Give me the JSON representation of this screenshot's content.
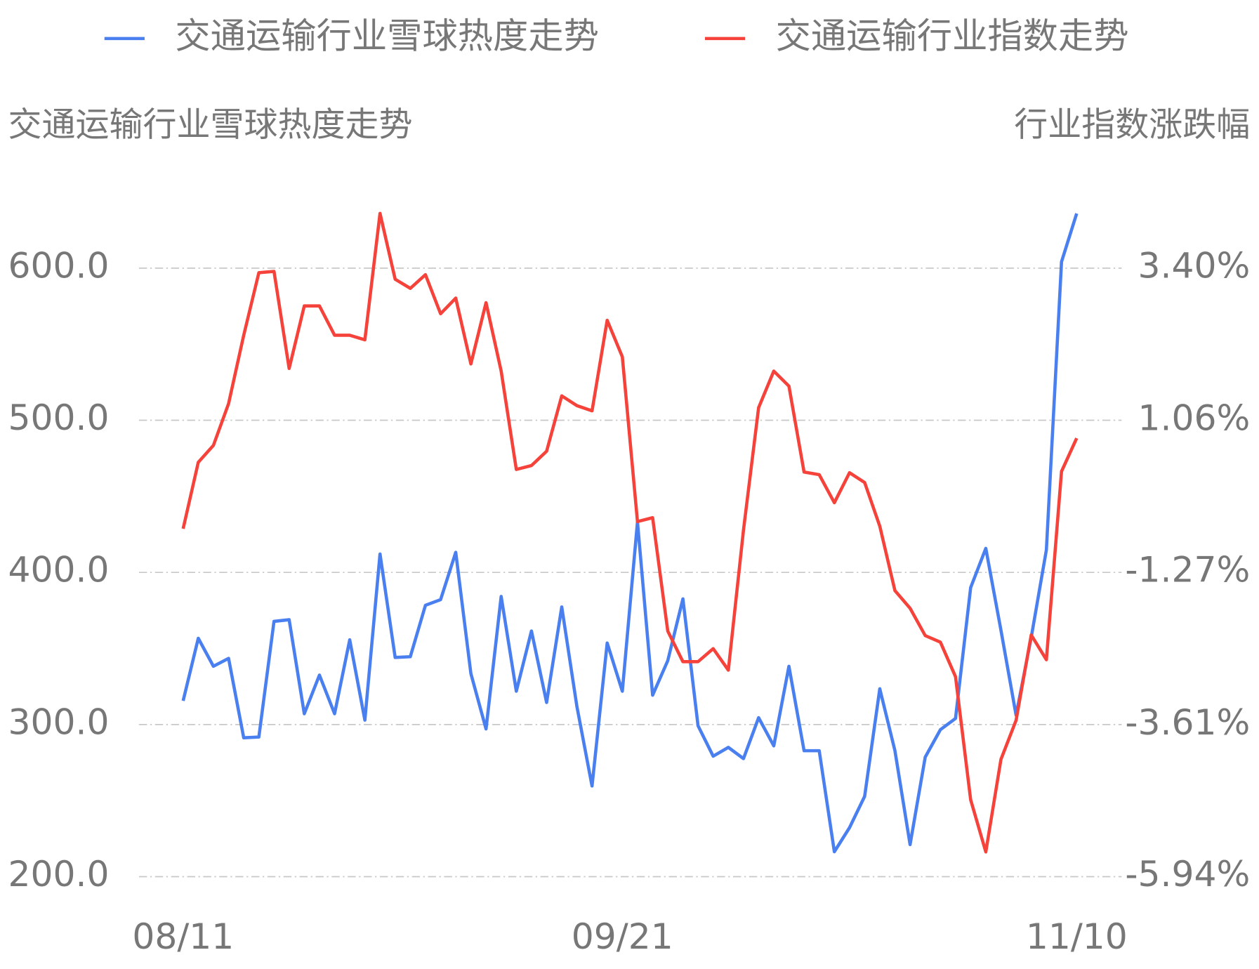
{
  "chart_data": {
    "type": "line",
    "y_label": "交通运输行业雪球热度走势",
    "y2_label": "行业指数涨跌幅",
    "categories": [
      "08/11",
      null,
      null,
      null,
      null,
      null,
      null,
      null,
      null,
      null,
      null,
      null,
      null,
      null,
      null,
      null,
      null,
      null,
      null,
      null,
      null,
      null,
      null,
      null,
      null,
      null,
      null,
      null,
      null,
      "09/21",
      null,
      null,
      null,
      null,
      null,
      null,
      null,
      null,
      null,
      null,
      null,
      null,
      null,
      null,
      null,
      null,
      null,
      null,
      null,
      null,
      null,
      null,
      null,
      null,
      null,
      null,
      null,
      null,
      null,
      "11/10"
    ],
    "series": [
      {
        "name": "交通运输行业雪球热度走势",
        "color": "#4a7ff0",
        "values": [
          315.6,
          356.7,
          338.3,
          343.5,
          291.3,
          291.8,
          367.8,
          368.9,
          307.1,
          332.5,
          307.1,
          355.7,
          302.9,
          412.1,
          344.1,
          344.6,
          378.4,
          382.1,
          413.2,
          333.5,
          297.1,
          384.2,
          321.9,
          361.5,
          314.5,
          377.3,
          311.9,
          259.6,
          353.6,
          321.9,
          433.2,
          319.3,
          342.0,
          382.6,
          299.2,
          279.2,
          285.0,
          277.6,
          304.5,
          286.0,
          338.3,
          282.8,
          282.8,
          216.4,
          232.2,
          252.8,
          323.5,
          282.8,
          221.1,
          278.6,
          296.6,
          304.0,
          390.0,
          415.8,
          362.0,
          306.1,
          357.3,
          414.8,
          604.2,
          635.9
        ]
      },
      {
        "name": "交通运输行业指数走势",
        "color": "#f5423a",
        "axis": "y2",
        "values": [
          -0.6,
          0.42,
          0.68,
          1.32,
          2.37,
          3.33,
          3.35,
          1.86,
          2.82,
          2.82,
          2.37,
          2.37,
          2.3,
          4.24,
          3.23,
          3.09,
          3.3,
          2.7,
          2.94,
          1.93,
          2.87,
          1.82,
          0.31,
          0.37,
          0.59,
          1.44,
          1.29,
          1.21,
          2.6,
          2.04,
          -0.49,
          -0.43,
          -2.17,
          -2.64,
          -2.64,
          -2.44,
          -2.77,
          -0.62,
          1.26,
          1.82,
          1.59,
          0.27,
          0.23,
          -0.2,
          0.26,
          0.11,
          -0.56,
          -1.55,
          -1.82,
          -2.24,
          -2.34,
          -2.87,
          -4.76,
          -5.56,
          -4.14,
          -3.54,
          -2.23,
          -2.61,
          0.28,
          0.79
        ]
      }
    ],
    "ylim": [
      200,
      600
    ],
    "yticks": [
      {
        "value": 200,
        "label": "200.0"
      },
      {
        "value": 300,
        "label": "300.0"
      },
      {
        "value": 400,
        "label": "400.0"
      },
      {
        "value": 500,
        "label": "500.0"
      },
      {
        "value": 600,
        "label": "600.0"
      }
    ],
    "y2lim": [
      -5.94,
      3.4
    ],
    "y2ticks": [
      {
        "value": -5.94,
        "label": "-5.94%"
      },
      {
        "value": -3.61,
        "label": "-3.61%"
      },
      {
        "value": -1.27,
        "label": "-1.27%"
      },
      {
        "value": 1.06,
        "label": "1.06%"
      },
      {
        "value": 3.4,
        "label": "3.40%"
      }
    ],
    "grid": true
  }
}
